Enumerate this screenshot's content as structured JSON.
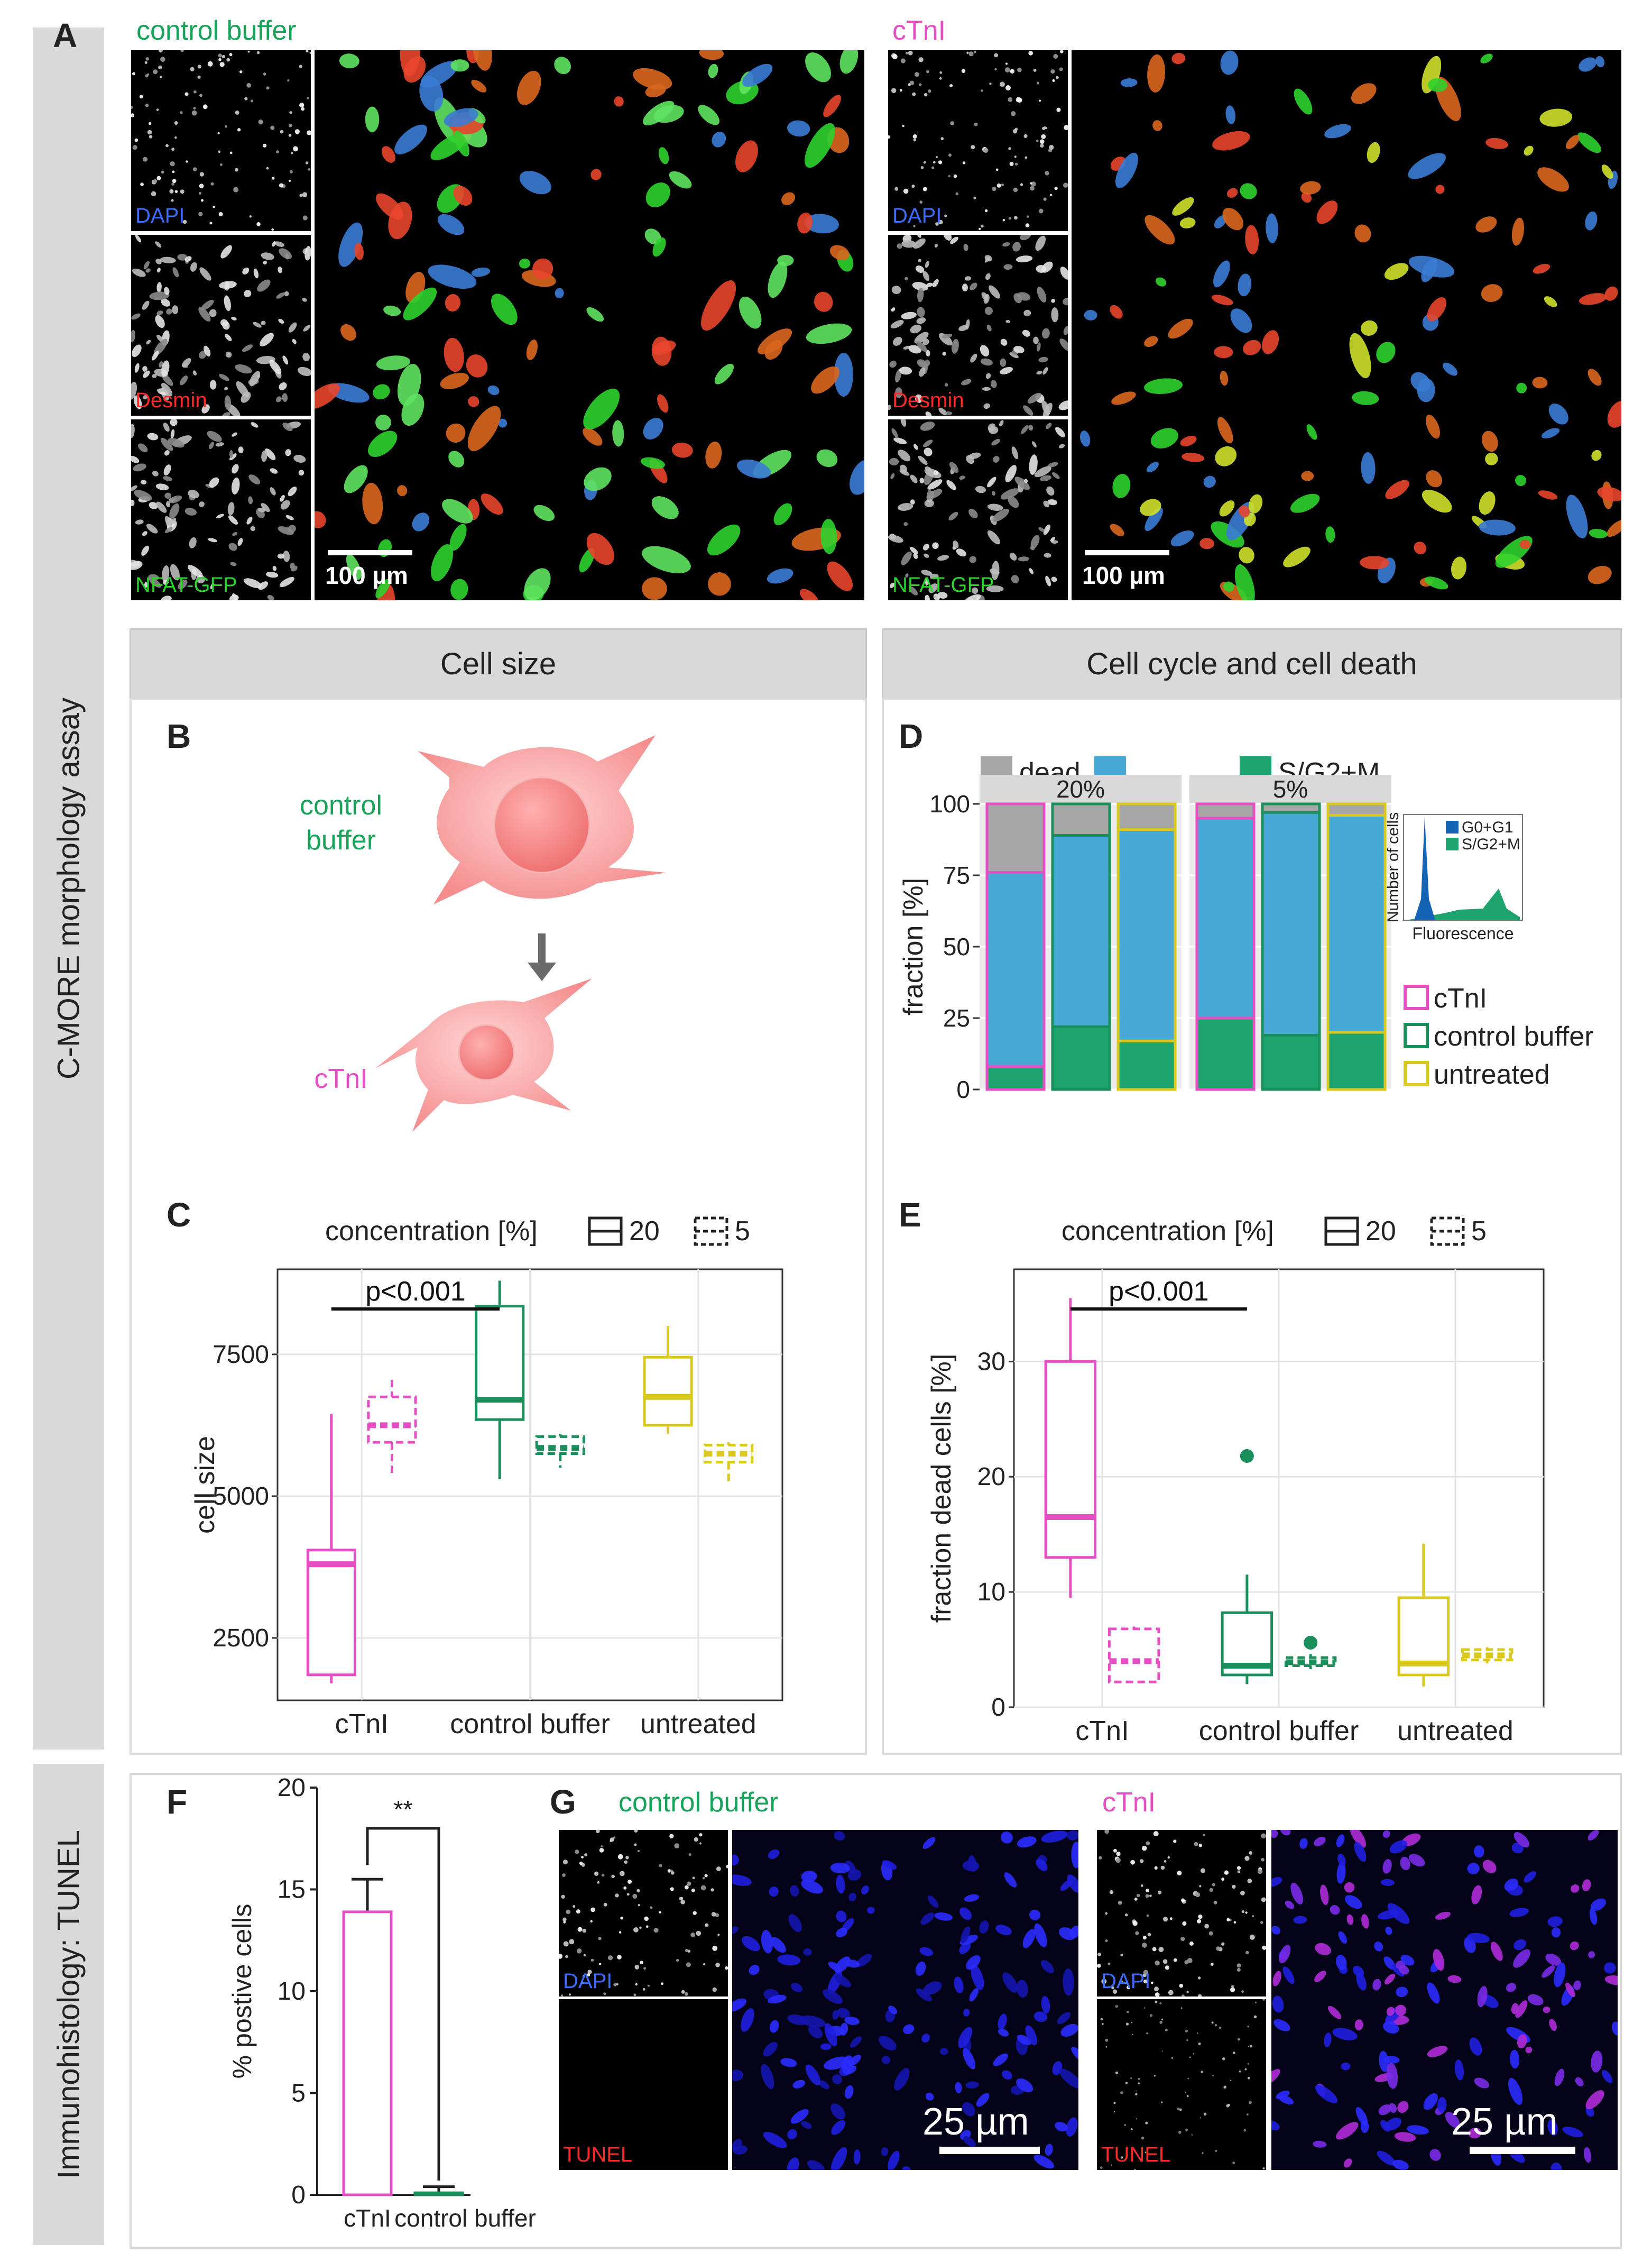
{
  "panels": {
    "A": "A",
    "B": "B",
    "C": "C",
    "D": "D",
    "E": "E",
    "F": "F",
    "G": "G"
  },
  "sidebar": {
    "top": "C-MORE morphology assay",
    "bottom": "Immunohistology: TUNEL"
  },
  "headers": {
    "cell_size": "Cell size",
    "cell_cycle": "Cell cycle and cell death"
  },
  "panelA": {
    "left_title": "control buffer",
    "right_title": "cTnI",
    "channels": [
      "DAPI",
      "Desmin",
      "NFAT-GFP"
    ],
    "scalebar": "100 µm"
  },
  "panelB": {
    "top_label": "control\nbuffer",
    "bottom_label": "cTnI"
  },
  "panelG": {
    "left_title": "control buffer",
    "right_title": "cTnI",
    "channels": [
      "DAPI",
      "TUNEL"
    ],
    "scalebar": "25 µm"
  },
  "colors": {
    "cTnI": "#e64fc4",
    "control_buffer": "#1a8f5c",
    "untreated": "#d9c81e",
    "dead": "#a6a6a6",
    "g0g1": "#45a8d5",
    "sg2m": "#1ca36e",
    "green_text": "#19a35a",
    "pink_text": "#e64fc4"
  },
  "chart_data": [
    {
      "id": "C",
      "type": "box",
      "legend_title": "concentration [%]",
      "legend": [
        "20",
        "5"
      ],
      "categories": [
        "cTnI",
        "control buffer",
        "untreated"
      ],
      "ylabel": "cell size",
      "yticks": [
        2500,
        5000,
        7500
      ],
      "ylim": [
        1400,
        9000
      ],
      "annotation": "p<0.001",
      "series": [
        {
          "name": "20",
          "boxes": [
            {
              "min": 1700,
              "q1": 1850,
              "median": 3800,
              "q3": 4050,
              "max": 6450
            },
            {
              "min": 5300,
              "q1": 6350,
              "median": 6700,
              "q3": 8350,
              "max": 8800
            },
            {
              "min": 6100,
              "q1": 6250,
              "median": 6750,
              "q3": 7450,
              "max": 8000
            }
          ]
        },
        {
          "name": "5",
          "boxes": [
            {
              "min": 5400,
              "q1": 5950,
              "median": 6250,
              "q3": 6750,
              "max": 7050
            },
            {
              "min": 5500,
              "q1": 5750,
              "median": 5850,
              "q3": 6050,
              "max": 6100
            },
            {
              "min": 5200,
              "q1": 5600,
              "median": 5750,
              "q3": 5900,
              "max": 5950
            }
          ]
        }
      ]
    },
    {
      "id": "D",
      "type": "stacked-bar",
      "legend_top": [
        "dead",
        "",
        "S/G2+M"
      ],
      "facets": [
        "20%",
        "5%"
      ],
      "ylabel": "fraction [%]",
      "yticks": [
        0,
        25,
        50,
        75,
        100
      ],
      "ylim": [
        0,
        100
      ],
      "bars": [
        {
          "facet": "20%",
          "group": "cTnI",
          "sg2m": 8,
          "g0g1": 68,
          "dead": 24
        },
        {
          "facet": "20%",
          "group": "control buffer",
          "sg2m": 22,
          "g0g1": 67,
          "dead": 11
        },
        {
          "facet": "20%",
          "group": "untreated",
          "sg2m": 17,
          "g0g1": 74,
          "dead": 9
        },
        {
          "facet": "5%",
          "group": "cTnI",
          "sg2m": 25,
          "g0g1": 70,
          "dead": 5
        },
        {
          "facet": "5%",
          "group": "control buffer",
          "sg2m": 19,
          "g0g1": 78,
          "dead": 3
        },
        {
          "facet": "5%",
          "group": "untreated",
          "sg2m": 20,
          "g0g1": 76,
          "dead": 4
        }
      ],
      "legend_groups": [
        "cTnI",
        "control buffer",
        "untreated"
      ],
      "inset": {
        "xlabel": "Fluorescence",
        "ylabel": "Number of cells",
        "legend": [
          "G0+G1",
          "S/G2+M"
        ]
      }
    },
    {
      "id": "E",
      "type": "box",
      "legend_title": "concentration [%]",
      "legend": [
        "20",
        "5"
      ],
      "categories": [
        "cTnI",
        "control buffer",
        "untreated"
      ],
      "ylabel": "fraction dead cells [%]",
      "yticks": [
        0,
        10,
        20,
        30
      ],
      "ylim": [
        0,
        38
      ],
      "annotation": "p<0.001",
      "series": [
        {
          "name": "20",
          "boxes": [
            {
              "min": 9.5,
              "q1": 13,
              "median": 16.5,
              "q3": 30,
              "max": 35.5
            },
            {
              "min": 2,
              "q1": 2.8,
              "median": 3.6,
              "q3": 8.2,
              "max": 11.5,
              "outliers": [
                21.8
              ]
            },
            {
              "min": 1.8,
              "q1": 2.8,
              "median": 3.8,
              "q3": 9.5,
              "max": 14.2
            }
          ]
        },
        {
          "name": "5",
          "boxes": [
            {
              "min": 2.2,
              "q1": 2.2,
              "median": 4,
              "q3": 6.8,
              "max": 7
            },
            {
              "min": 3.3,
              "q1": 3.6,
              "median": 3.9,
              "q3": 4.3,
              "max": 4.6,
              "outliers": [
                5.6
              ]
            },
            {
              "min": 3.8,
              "q1": 4.1,
              "median": 4.5,
              "q3": 5.0,
              "max": 5.2
            }
          ]
        }
      ]
    },
    {
      "id": "F",
      "type": "bar",
      "categories": [
        "cTnI",
        "control buffer"
      ],
      "values": [
        13.9,
        0.1
      ],
      "errors": [
        1.6,
        0.3
      ],
      "ylabel": "% postive cells",
      "yticks": [
        0,
        5,
        10,
        15,
        20
      ],
      "ylim": [
        0,
        20
      ],
      "annotation": "**"
    }
  ]
}
